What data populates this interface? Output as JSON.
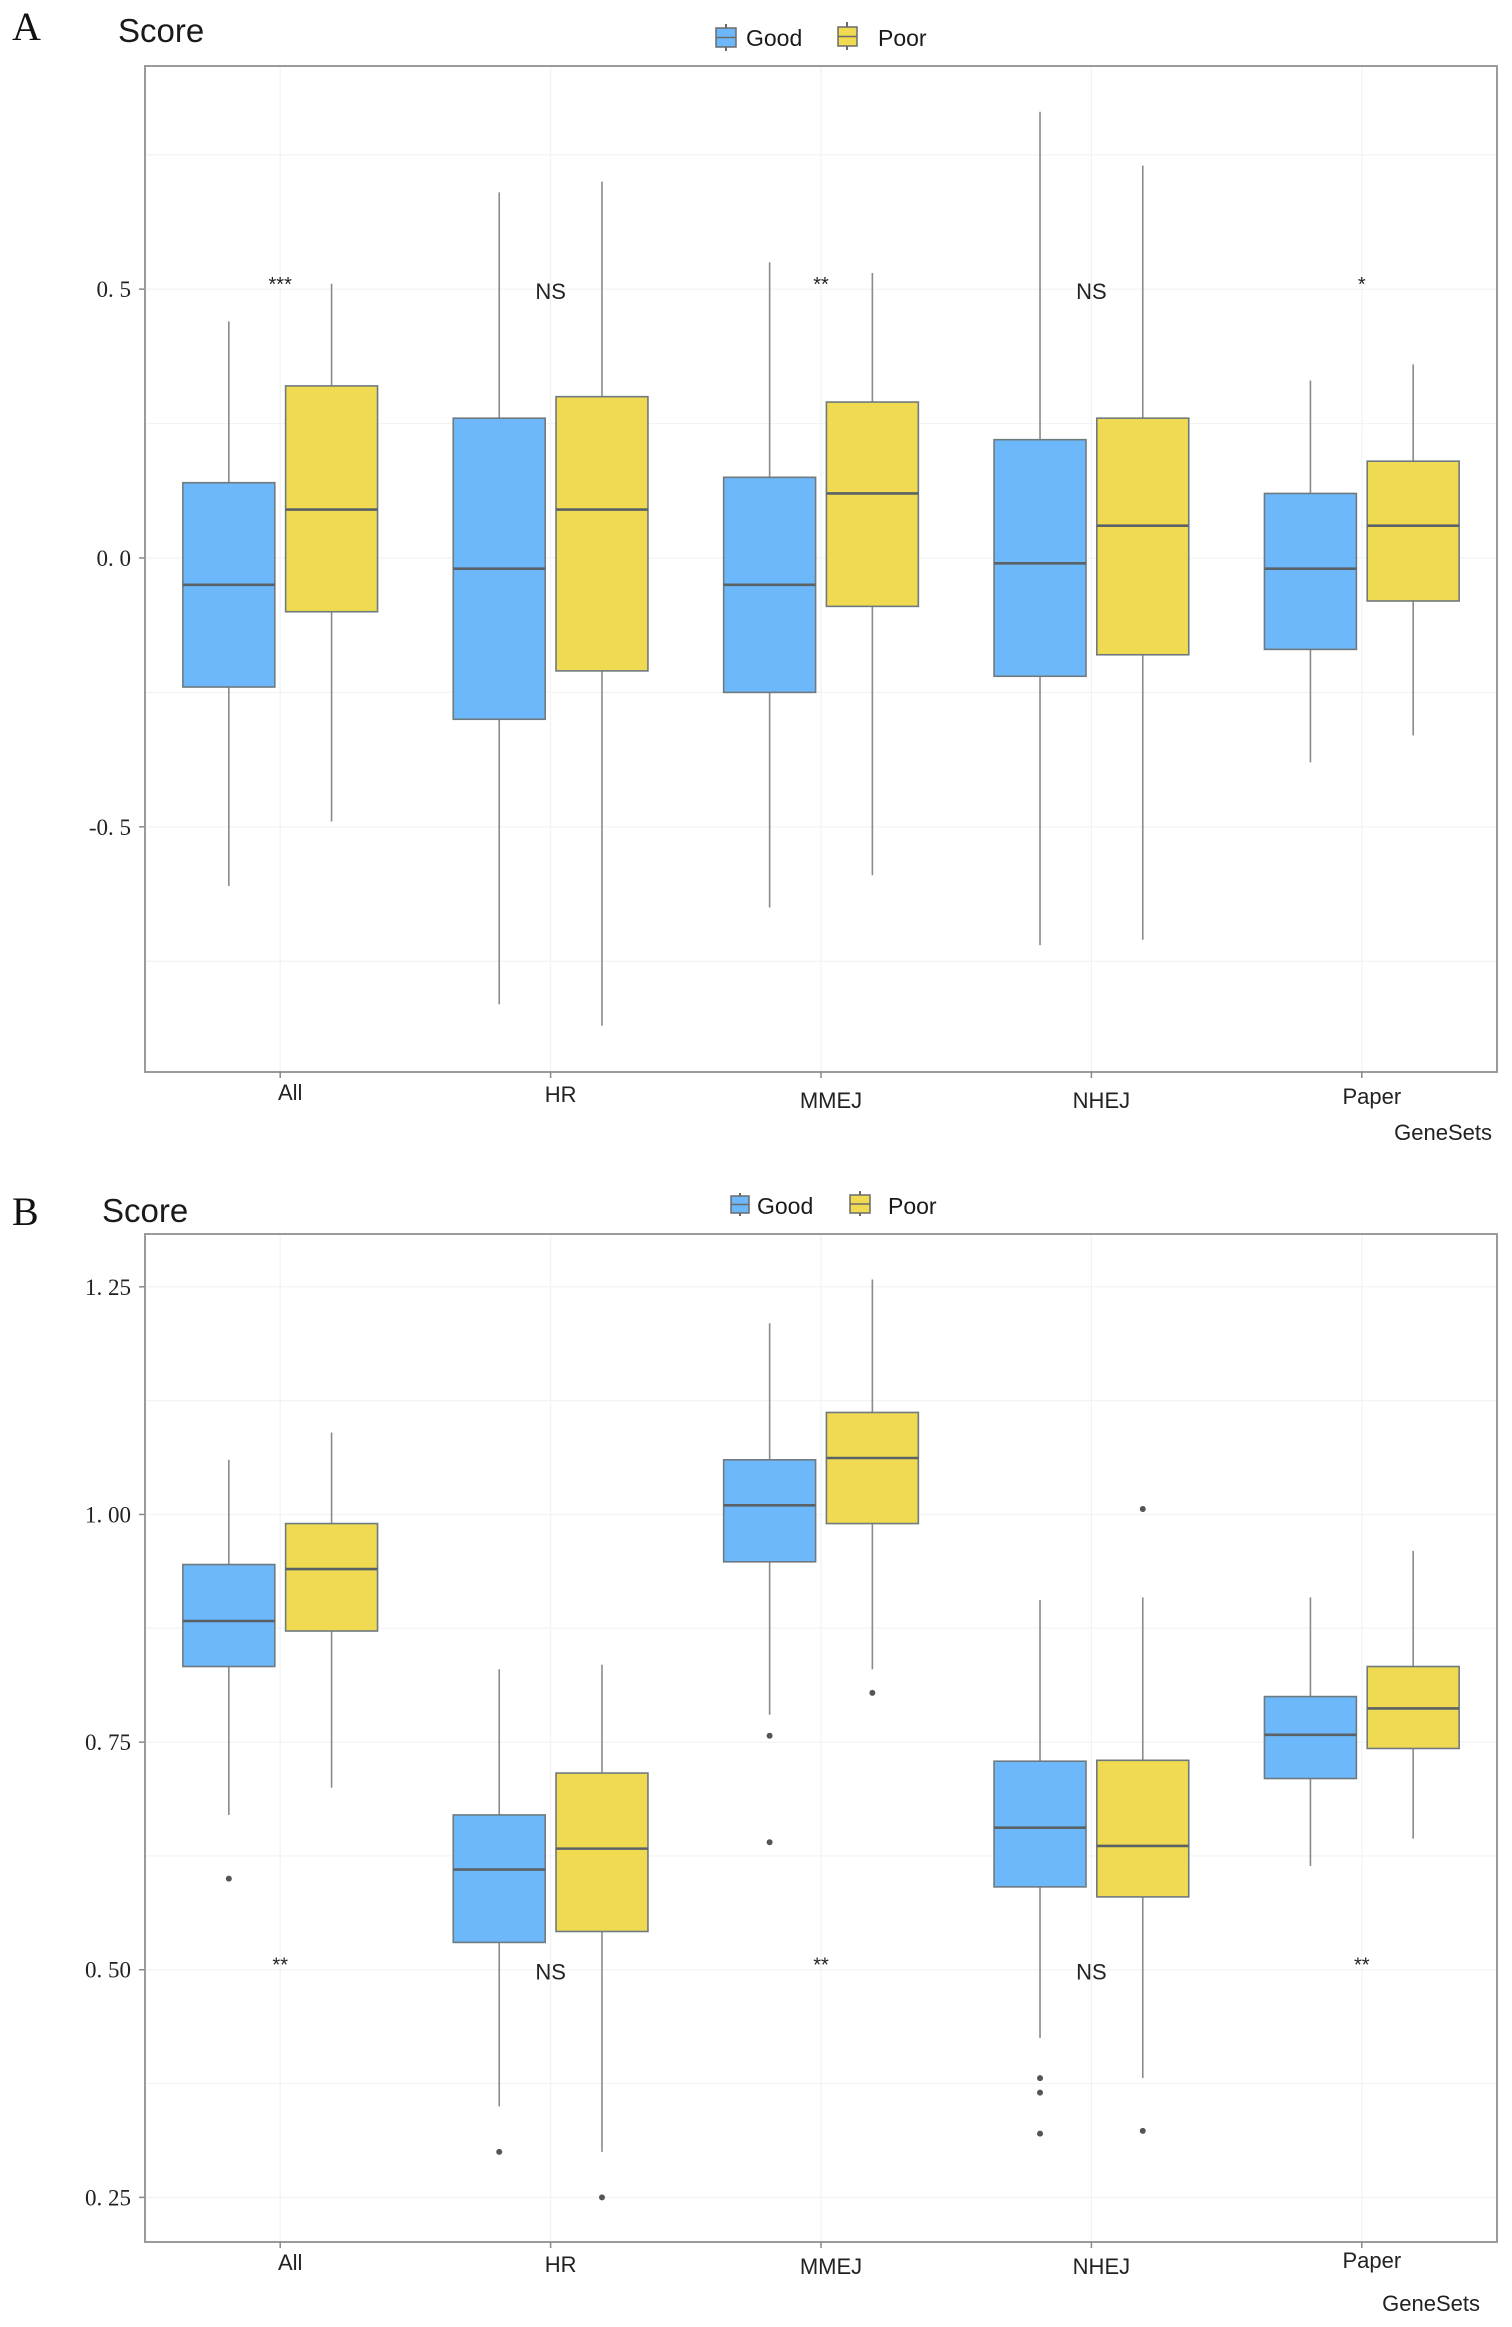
{
  "figure": {
    "panels": [
      {
        "letter": "A",
        "ylabel": "Score",
        "xlabel": "GeneSets"
      },
      {
        "letter": "B",
        "ylabel": "Score",
        "xlabel": "GeneSets"
      }
    ],
    "legend": [
      {
        "label": "Good",
        "color": "#6CB8FA"
      },
      {
        "label": "Poor",
        "color": "#EFDA52"
      }
    ]
  },
  "chart_data": [
    {
      "type": "boxplot",
      "panel": "A",
      "title": "",
      "ylabel": "Score",
      "xlabel": "GeneSets",
      "categories": [
        "All",
        "HR",
        "MMEJ",
        "NHEJ",
        "Paper"
      ],
      "ylim": [
        -0.956,
        0.915
      ],
      "yticks": [
        -0.5,
        0.0,
        0.5
      ],
      "ytick_labels": [
        "-0.5",
        "0.0",
        "0.5"
      ],
      "grid": true,
      "legend_position": "top-center",
      "significance": [
        "***",
        "NS",
        "**",
        "NS",
        "*"
      ],
      "significance_y": 0.5,
      "series": [
        {
          "name": "Good",
          "color": "#6CB8FA",
          "boxes": [
            {
              "whisker_low": -0.61,
              "q1": -0.24,
              "median": -0.05,
              "q3": 0.14,
              "whisker_high": 0.44,
              "outliers": []
            },
            {
              "whisker_low": -0.83,
              "q1": -0.3,
              "median": -0.02,
              "q3": 0.26,
              "whisker_high": 0.68,
              "outliers": []
            },
            {
              "whisker_low": -0.65,
              "q1": -0.25,
              "median": -0.05,
              "q3": 0.15,
              "whisker_high": 0.55,
              "outliers": []
            },
            {
              "whisker_low": -0.72,
              "q1": -0.22,
              "median": -0.01,
              "q3": 0.22,
              "whisker_high": 0.83,
              "outliers": []
            },
            {
              "whisker_low": -0.38,
              "q1": -0.17,
              "median": -0.02,
              "q3": 0.12,
              "whisker_high": 0.33,
              "outliers": []
            }
          ]
        },
        {
          "name": "Poor",
          "color": "#EFDA52",
          "boxes": [
            {
              "whisker_low": -0.49,
              "q1": -0.1,
              "median": 0.09,
              "q3": 0.32,
              "whisker_high": 0.51,
              "outliers": []
            },
            {
              "whisker_low": -0.87,
              "q1": -0.21,
              "median": 0.09,
              "q3": 0.3,
              "whisker_high": 0.7,
              "outliers": []
            },
            {
              "whisker_low": -0.59,
              "q1": -0.09,
              "median": 0.12,
              "q3": 0.29,
              "whisker_high": 0.53,
              "outliers": []
            },
            {
              "whisker_low": -0.71,
              "q1": -0.18,
              "median": 0.06,
              "q3": 0.26,
              "whisker_high": 0.73,
              "outliers": []
            },
            {
              "whisker_low": -0.33,
              "q1": -0.08,
              "median": 0.06,
              "q3": 0.18,
              "whisker_high": 0.36,
              "outliers": []
            }
          ]
        }
      ]
    },
    {
      "type": "boxplot",
      "panel": "B",
      "title": "",
      "ylabel": "Score",
      "xlabel": "GeneSets",
      "categories": [
        "All",
        "HR",
        "MMEJ",
        "NHEJ",
        "Paper"
      ],
      "ylim": [
        0.201,
        1.308
      ],
      "yticks": [
        0.25,
        0.5,
        0.75,
        1.0,
        1.25
      ],
      "ytick_labels": [
        "0.25",
        "0.50",
        "0.75",
        "1.00",
        "1.25"
      ],
      "grid": true,
      "legend_position": "top-center",
      "significance": [
        "**",
        "NS",
        "**",
        "NS",
        "**"
      ],
      "significance_y": 0.5,
      "series": [
        {
          "name": "Good",
          "color": "#6CB8FA",
          "boxes": [
            {
              "whisker_low": 0.67,
              "q1": 0.833,
              "median": 0.883,
              "q3": 0.945,
              "whisker_high": 1.06,
              "outliers": [
                0.6
              ]
            },
            {
              "whisker_low": 0.35,
              "q1": 0.53,
              "median": 0.61,
              "q3": 0.67,
              "whisker_high": 0.83,
              "outliers": [
                0.3
              ]
            },
            {
              "whisker_low": 0.78,
              "q1": 0.948,
              "median": 1.01,
              "q3": 1.06,
              "whisker_high": 1.21,
              "outliers": [
                0.757,
                0.64
              ]
            },
            {
              "whisker_low": 0.425,
              "q1": 0.591,
              "median": 0.656,
              "q3": 0.729,
              "whisker_high": 0.906,
              "outliers": [
                0.381,
                0.365,
                0.32
              ]
            },
            {
              "whisker_low": 0.614,
              "q1": 0.71,
              "median": 0.758,
              "q3": 0.8,
              "whisker_high": 0.909,
              "outliers": []
            }
          ]
        },
        {
          "name": "Poor",
          "color": "#EFDA52",
          "boxes": [
            {
              "whisker_low": 0.7,
              "q1": 0.872,
              "median": 0.94,
              "q3": 0.99,
              "whisker_high": 1.09,
              "outliers": []
            },
            {
              "whisker_low": 0.3,
              "q1": 0.542,
              "median": 0.633,
              "q3": 0.716,
              "whisker_high": 0.835,
              "outliers": [
                0.25
              ]
            },
            {
              "whisker_low": 0.83,
              "q1": 0.99,
              "median": 1.062,
              "q3": 1.112,
              "whisker_high": 1.258,
              "outliers": [
                0.804
              ]
            },
            {
              "whisker_low": 0.381,
              "q1": 0.58,
              "median": 0.636,
              "q3": 0.73,
              "whisker_high": 0.909,
              "outliers": [
                1.006,
                0.323
              ]
            },
            {
              "whisker_low": 0.644,
              "q1": 0.743,
              "median": 0.787,
              "q3": 0.833,
              "whisker_high": 0.96,
              "outliers": []
            }
          ]
        }
      ]
    }
  ]
}
